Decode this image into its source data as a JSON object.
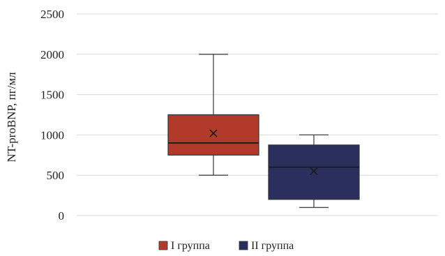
{
  "chart_data": {
    "type": "box",
    "ylabel": "NT-proBNP, пг/мл",
    "ylim": [
      0,
      2500
    ],
    "yticks": [
      0,
      500,
      1000,
      1500,
      2000,
      2500
    ],
    "grid": true,
    "legend_position": "bottom",
    "series": [
      {
        "name": "I группа",
        "color": "#b23a2a",
        "min": 500,
        "q1": 750,
        "median": 900,
        "q3": 1250,
        "max": 2000,
        "mean": 1020
      },
      {
        "name": "II группа",
        "color": "#2b2f5e",
        "min": 100,
        "q1": 200,
        "median": 600,
        "q3": 875,
        "max": 1000,
        "mean": 550
      }
    ]
  }
}
